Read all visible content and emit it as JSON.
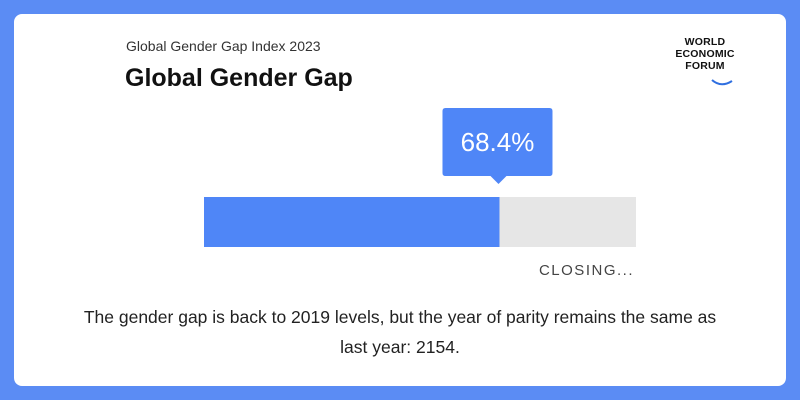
{
  "header": {
    "subtitle": "Global Gender Gap Index 2023",
    "title": "Global Gender Gap"
  },
  "logo": {
    "line1": "WORLD",
    "line2": "ECONOMIC",
    "line3": "FORUM"
  },
  "chart_data": {
    "type": "bar",
    "orientation": "horizontal",
    "value": 68.4,
    "max": 100,
    "value_label": "68.4%",
    "status_label": "CLOSING...",
    "fill_color": "#4f86f7",
    "track_color": "#e6e6e6",
    "callout_color": "#4f86f7"
  },
  "caption": "The gender gap is back to 2019 levels, but the year of parity remains the same as last year: 2154.",
  "colors": {
    "background": "#5b8cf4",
    "card": "#ffffff",
    "accent": "#4f86f7"
  }
}
